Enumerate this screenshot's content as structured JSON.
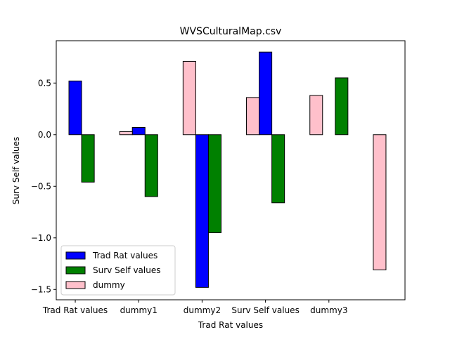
{
  "chart_data": {
    "type": "bar",
    "title": "WVSCulturalMap.csv",
    "xlabel": "Trad Rat values",
    "ylabel": "Surv Self values",
    "ylim": [
      -1.6,
      0.91
    ],
    "yticks": [
      -1.5,
      -1.0,
      -0.5,
      0.0,
      0.5
    ],
    "ytick_labels": [
      "−1.5",
      "−1.0",
      "−0.5",
      "0.0",
      "0.5"
    ],
    "xticks": [
      0,
      1,
      2,
      3,
      4
    ],
    "xtick_labels": [
      "Trad Rat values",
      "dummy1",
      "dummy2",
      "Surv Self values",
      "dummy3"
    ],
    "xlim": [
      -0.3,
      5.2
    ],
    "bar_width": 0.2,
    "grid": false,
    "legend_position": "lower-left",
    "series": [
      {
        "name": "Trad Rat values",
        "color": "#0000ff",
        "x": [
          0,
          1,
          2,
          3,
          4
        ],
        "values": [
          0.52,
          0.07,
          -1.48,
          0.8,
          0.0
        ]
      },
      {
        "name": "Surv Self values",
        "color": "#008000",
        "x": [
          0.2,
          1.2,
          2.2,
          3.2,
          4.2
        ],
        "values": [
          -0.46,
          -0.6,
          -0.95,
          -0.66,
          0.55
        ]
      },
      {
        "name": "dummy",
        "color": "#ffc0cb",
        "x": [
          -0.2,
          0.8,
          1.8,
          2.8,
          3.8,
          4.8
        ],
        "values": [
          0.0,
          0.03,
          0.71,
          0.36,
          0.38,
          -1.31
        ]
      }
    ]
  }
}
